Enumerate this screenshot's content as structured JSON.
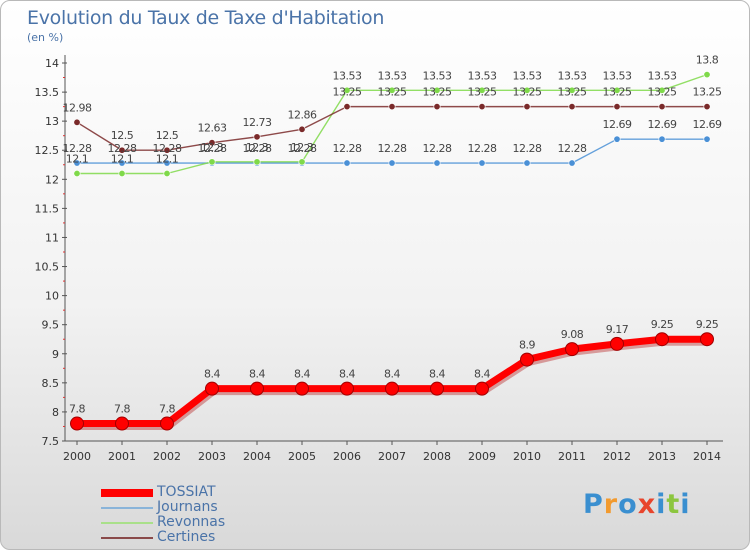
{
  "title": "Evolution du Taux de Taxe d'Habitation",
  "subtitle": "(en %)",
  "brand": "Proxiti",
  "chart_data": {
    "type": "line",
    "title": "Evolution du Taux de Taxe d'Habitation",
    "ylabel": "(en %)",
    "xlabel": "",
    "x": [
      "2000",
      "2001",
      "2002",
      "2003",
      "2004",
      "2005",
      "2006",
      "2007",
      "2008",
      "2009",
      "2010",
      "2011",
      "2012",
      "2013",
      "2014"
    ],
    "ylim": [
      7.5,
      14
    ],
    "yticks": [
      "7.5",
      "8",
      "8.5",
      "9",
      "9.5",
      "10",
      "10.5",
      "11",
      "11.5",
      "12",
      "12.5",
      "13",
      "13.5",
      "14"
    ],
    "grid": false,
    "legend_position": "bottom-left",
    "series": [
      {
        "name": "TOSSIAT",
        "color": "#ff0000",
        "values": [
          7.8,
          7.8,
          7.8,
          8.4,
          8.4,
          8.4,
          8.4,
          8.4,
          8.4,
          8.4,
          8.9,
          9.08,
          9.17,
          9.25,
          9.25
        ],
        "labels": [
          "7.8",
          "7.8",
          "7.8",
          "8.4",
          "8.4",
          "8.4",
          "8.4",
          "8.4",
          "8.4",
          "8.4",
          "8.9",
          "9.08",
          "9.17",
          "9.25",
          "9.25"
        ]
      },
      {
        "name": "Journans",
        "color": "#4a90d6",
        "values": [
          12.28,
          12.28,
          12.28,
          12.28,
          12.28,
          12.28,
          12.28,
          12.28,
          12.28,
          12.28,
          12.28,
          12.28,
          12.69,
          12.69,
          12.69
        ],
        "labels": [
          "12.28",
          "12.28",
          "12.28",
          "12.28",
          "12.28",
          "12.28",
          "12.28",
          "12.28",
          "12.28",
          "12.28",
          "12.28",
          "12.28",
          "12.69",
          "12.69",
          "12.69"
        ]
      },
      {
        "name": "Revonnas",
        "color": "#7fd94a",
        "values": [
          12.1,
          12.1,
          12.1,
          12.3,
          12.3,
          12.3,
          13.53,
          13.53,
          13.53,
          13.53,
          13.53,
          13.53,
          13.53,
          13.53,
          13.8
        ],
        "labels": [
          "12.1",
          "12.1",
          "12.1",
          "12.3",
          "12.3",
          "12.3",
          "13.53",
          "13.53",
          "13.53",
          "13.53",
          "13.53",
          "13.53",
          "13.53",
          "13.53",
          "13.8"
        ]
      },
      {
        "name": "Certines",
        "color": "#7a2a2a",
        "values": [
          12.98,
          12.5,
          12.5,
          12.63,
          12.73,
          12.86,
          13.25,
          13.25,
          13.25,
          13.25,
          13.25,
          13.25,
          13.25,
          13.25,
          13.25
        ],
        "labels": [
          "12.98",
          "12.5",
          "12.5",
          "12.63",
          "12.73",
          "12.86",
          "13.25",
          "13.25",
          "13.25",
          "13.25",
          "13.25",
          "13.25",
          "13.25",
          "13.25",
          "13.25"
        ]
      }
    ]
  }
}
